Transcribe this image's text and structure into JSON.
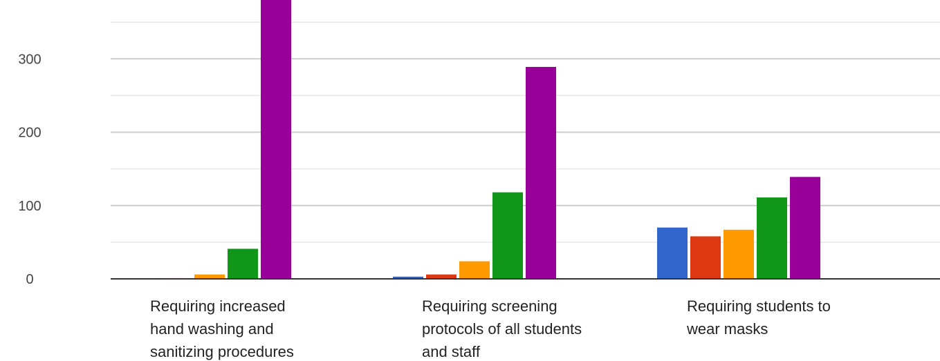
{
  "chart_data": {
    "type": "bar",
    "title": "",
    "xlabel": "",
    "ylabel": "",
    "ylim": [
      0,
      400
    ],
    "grid": true,
    "yticks": [
      0,
      100,
      200,
      300,
      400
    ],
    "categories": [
      {
        "lines": [
          "Requiring increased",
          "hand washing and",
          "sanitizing procedures"
        ]
      },
      {
        "lines": [
          "Requiring screening",
          "protocols of all students",
          "and staff"
        ]
      },
      {
        "lines": [
          "Requiring students to",
          "wear masks"
        ]
      }
    ],
    "series": [
      {
        "color": "#3366cc",
        "values": [
          0,
          3,
          70
        ]
      },
      {
        "color": "#dc3912",
        "values": [
          1,
          6,
          58
        ]
      },
      {
        "color": "#ff9900",
        "values": [
          6,
          24,
          67
        ]
      },
      {
        "color": "#109618",
        "values": [
          41,
          118,
          111
        ]
      },
      {
        "color": "#990099",
        "values": [
          410,
          289,
          139
        ]
      }
    ]
  }
}
